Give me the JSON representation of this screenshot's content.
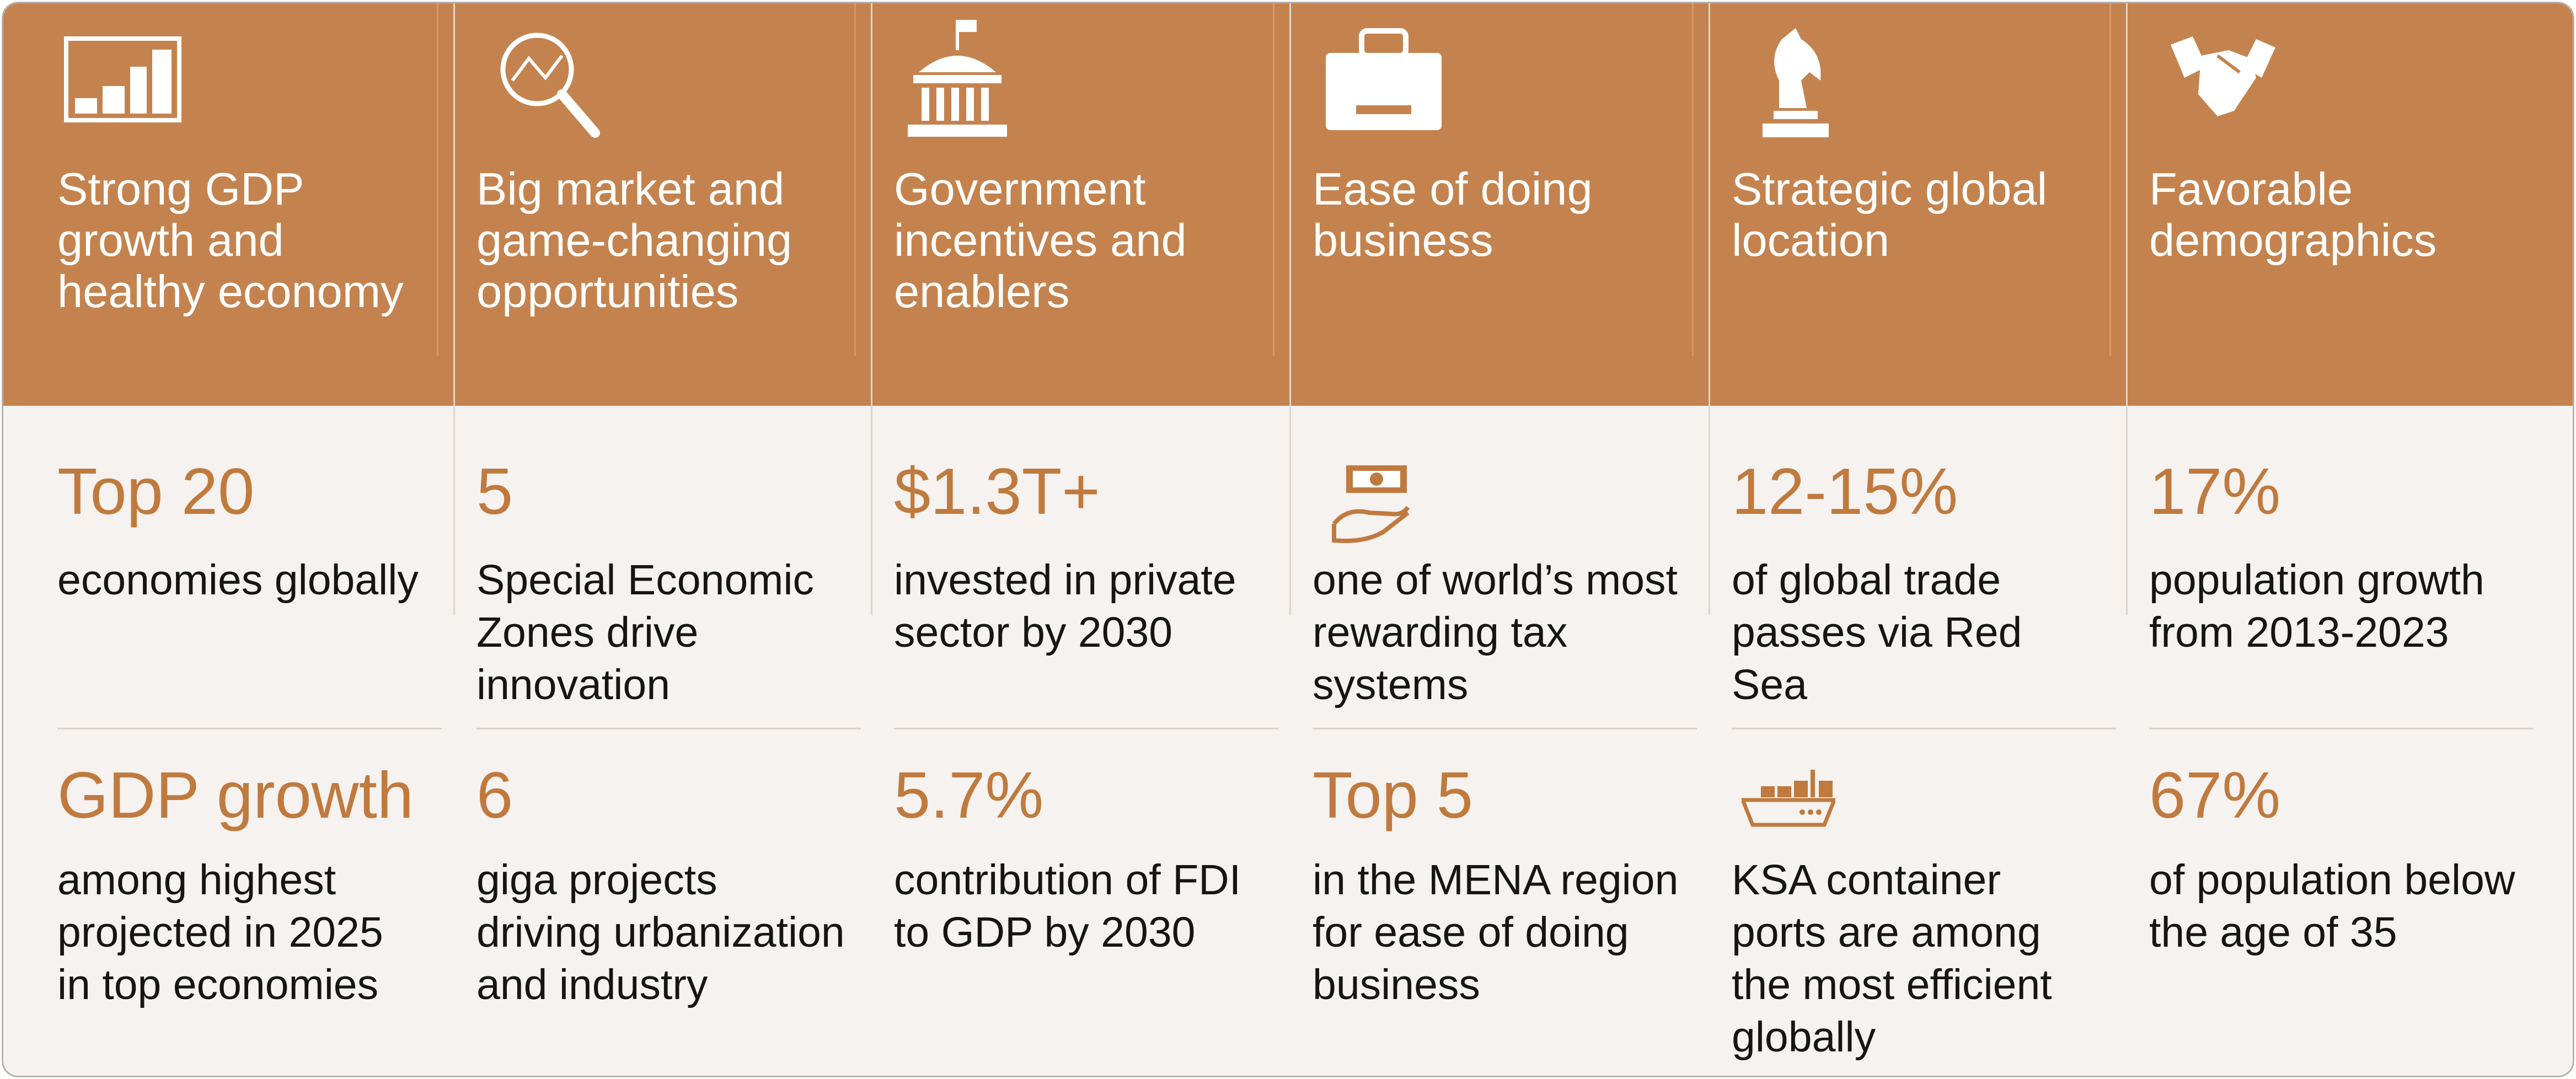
{
  "columns": [
    {
      "title": [
        "Strong GDP",
        "growth and",
        "healthy economy"
      ],
      "items": [
        {
          "stat": "Top 20",
          "desc": [
            "economies globally"
          ]
        },
        {
          "stat": "GDP growth",
          "desc": [
            "among highest",
            "projected in 2025",
            "in top economies"
          ]
        }
      ]
    },
    {
      "title": [
        "Big market and",
        "game-changing",
        "opportunities"
      ],
      "items": [
        {
          "stat": "5",
          "desc": [
            "Special Economic",
            "Zones drive",
            "innovation"
          ]
        },
        {
          "stat": "6",
          "desc": [
            "giga projects",
            "driving urbanization",
            "and industry"
          ]
        }
      ]
    },
    {
      "title": [
        "Government",
        "incentives and",
        "enablers"
      ],
      "items": [
        {
          "stat": "$1.3T+",
          "desc": [
            "invested in private",
            "sector by 2030"
          ]
        },
        {
          "stat": "5.7%",
          "desc": [
            "contribution of FDI",
            "to GDP by 2030"
          ]
        }
      ]
    },
    {
      "title": [
        "Ease of doing",
        "business"
      ],
      "items": [
        {
          "desc": [
            "one of world’s most",
            "rewarding tax",
            "systems"
          ]
        },
        {
          "stat": "Top 5",
          "desc": [
            "in the MENA region",
            "for ease of doing",
            "business"
          ]
        }
      ]
    },
    {
      "title": [
        "Strategic global",
        "location"
      ],
      "items": [
        {
          "stat": "12-15%",
          "desc": [
            "of global trade",
            "passes via Red",
            "Sea"
          ]
        },
        {
          "desc": [
            "KSA container",
            "ports are among",
            "the most efficient",
            "globally"
          ]
        }
      ]
    },
    {
      "title": [
        "Favorable",
        "demographics"
      ],
      "items": [
        {
          "stat": "17%",
          "desc": [
            "population growth",
            "from 2013-2023"
          ]
        },
        {
          "stat": "67%",
          "desc": [
            "of population below",
            "the age of 35"
          ]
        }
      ]
    }
  ]
}
